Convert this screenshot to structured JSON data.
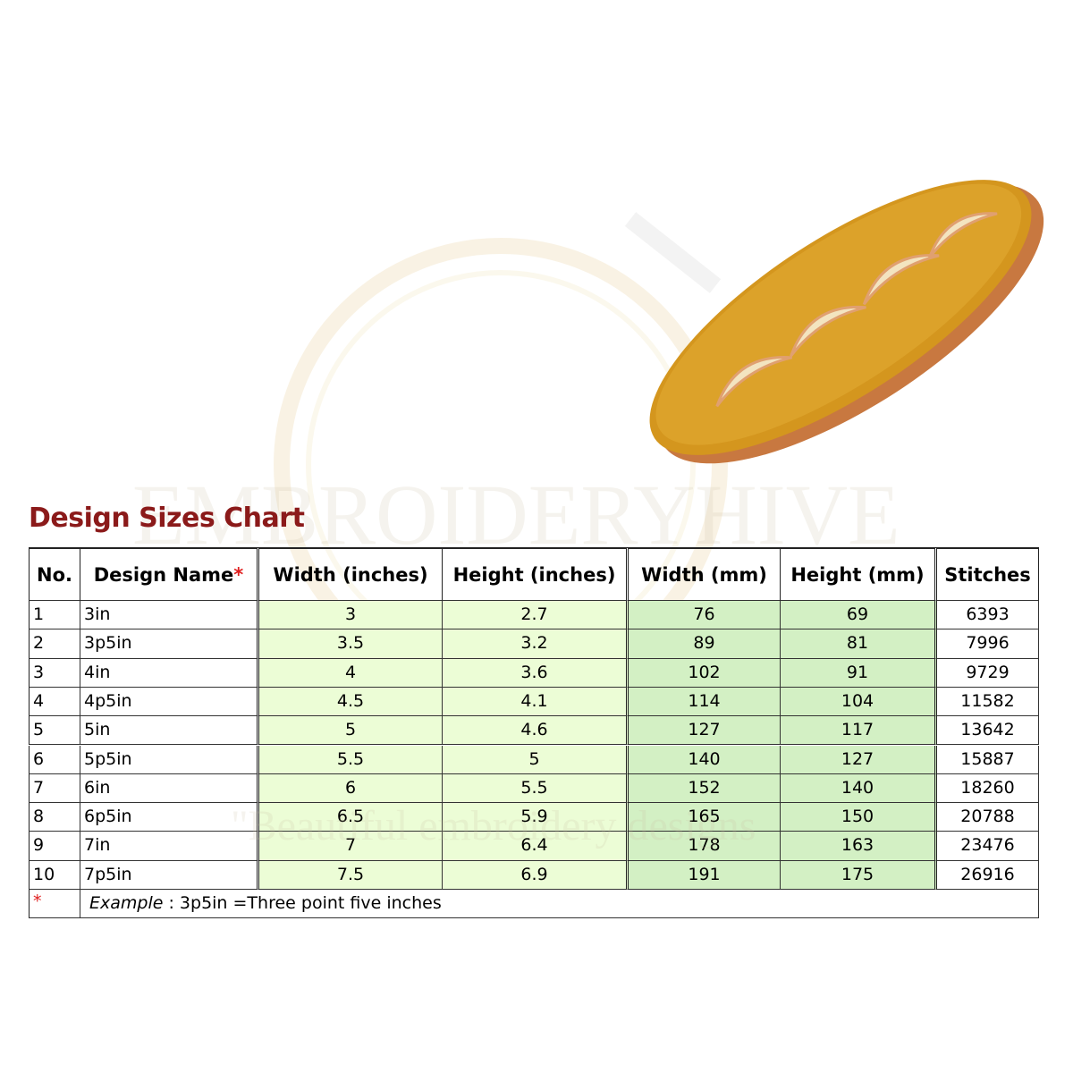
{
  "title": "Design Sizes Chart",
  "watermark": {
    "brand": "EMBROIDERYHIVE",
    "tagline": "\"Beautiful embroidery designs"
  },
  "table": {
    "headers": [
      "No.",
      "Design Name",
      "Width (inches)",
      "Height (inches)",
      "Width (mm)",
      "Height (mm)",
      "Stitches"
    ],
    "rows": [
      [
        1,
        "3in",
        3,
        2.7,
        76,
        69,
        6393
      ],
      [
        2,
        "3p5in",
        3.5,
        3.2,
        89,
        81,
        7996
      ],
      [
        3,
        "4in",
        4,
        3.6,
        102,
        91,
        9729
      ],
      [
        4,
        "4p5in",
        4.5,
        4.1,
        114,
        104,
        11582
      ],
      [
        5,
        "5in",
        5,
        4.6,
        127,
        117,
        13642
      ],
      [
        6,
        "5p5in",
        5.5,
        5,
        140,
        127,
        15887
      ],
      [
        7,
        "6in",
        6,
        5.5,
        152,
        140,
        18260
      ],
      [
        8,
        "6p5in",
        6.5,
        5.9,
        165,
        150,
        20788
      ],
      [
        9,
        "7in",
        7,
        6.4,
        178,
        163,
        23476
      ],
      [
        10,
        "7p5in",
        7.5,
        6.9,
        191,
        175,
        26916
      ]
    ],
    "footnote": {
      "marker": "*",
      "label": "Example",
      "text": " : 3p5in =Three point five inches"
    }
  }
}
